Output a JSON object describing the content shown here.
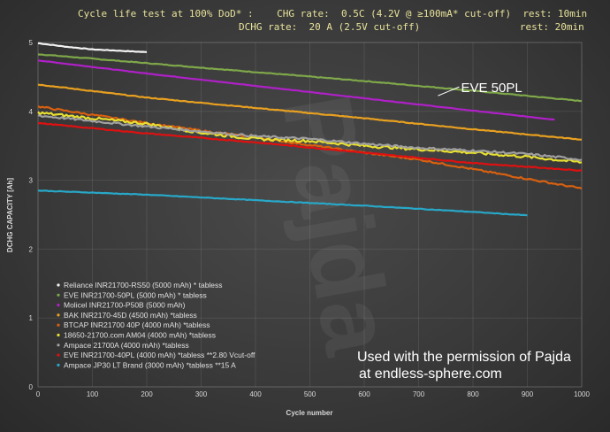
{
  "header": {
    "line1": "Cycle life test at 100% DoD* :    CHG rate:  0.5C (4.2V @ ≥100mA* cut-off)  rest: 10min",
    "line2": "DCHG rate:  20 A (2.5V cut-off)                 rest: 20min"
  },
  "permission": {
    "line1": "Used with the permission of Pajda",
    "line2": "at endless-sphere.com"
  },
  "watermark": "Pajda",
  "chart_data": {
    "type": "line",
    "xlabel": "Cycle number",
    "ylabel": "DCHG CAPACITY [Ah]",
    "xlim": [
      0,
      1000
    ],
    "ylim": [
      0,
      5
    ],
    "xticks": [
      0,
      100,
      200,
      300,
      400,
      500,
      600,
      700,
      800,
      900,
      1000
    ],
    "yticks": [
      0,
      1,
      2,
      3,
      4,
      5
    ],
    "grid": true,
    "legend_position": "bottom-left",
    "annotation": {
      "text": "EVE 50PL",
      "x": 778,
      "y": 4.24
    },
    "series": [
      {
        "name": "Reliance INR21700-RS50 (5000 mAh) * tabless",
        "color": "#f2f2f2",
        "noise": 0.004,
        "x": [
          0,
          50,
          100,
          150,
          200
        ],
        "y": [
          4.99,
          4.94,
          4.9,
          4.88,
          4.86
        ]
      },
      {
        "name": "EVE INR21700-50PL (5000 mAh) * tabless",
        "color": "#7fa84a",
        "noise": 0.005,
        "x": [
          0,
          200,
          400,
          600,
          800,
          1000
        ],
        "y": [
          4.83,
          4.7,
          4.57,
          4.44,
          4.3,
          4.15
        ]
      },
      {
        "name": "Molicel INR21700-P50B (5000 mAh)",
        "color": "#b020c8",
        "noise": 0.003,
        "x": [
          0,
          200,
          400,
          600,
          800,
          950
        ],
        "y": [
          4.74,
          4.55,
          4.37,
          4.19,
          4.01,
          3.88
        ]
      },
      {
        "name": "BAK INR2170-45D (4500 mAh) *tabless",
        "color": "#e8a020",
        "noise": 0.005,
        "x": [
          0,
          200,
          400,
          600,
          800,
          1000
        ],
        "y": [
          4.39,
          4.2,
          4.05,
          3.9,
          3.74,
          3.59
        ]
      },
      {
        "name": "BTCAP INR21700 40P (4000 mAh) *tabless",
        "color": "#d86010",
        "noise": 0.012,
        "x": [
          0,
          100,
          200,
          300,
          400,
          500,
          600,
          700,
          800,
          900,
          1000
        ],
        "y": [
          4.07,
          3.95,
          3.83,
          3.72,
          3.62,
          3.51,
          3.4,
          3.3,
          3.16,
          3.02,
          2.88
        ]
      },
      {
        "name": "18650-21700.com AM04 (4000 mAh) *tabless",
        "color": "#e8e030",
        "noise": 0.02,
        "x": [
          0,
          200,
          300,
          400,
          500,
          600,
          700,
          800,
          900,
          1000
        ],
        "y": [
          3.98,
          3.82,
          3.69,
          3.6,
          3.57,
          3.5,
          3.45,
          3.4,
          3.34,
          3.26
        ]
      },
      {
        "name": "Ampace 21700A (4000 mAh) *tabless",
        "color": "#a0a0a0",
        "noise": 0.015,
        "x": [
          0,
          200,
          400,
          500,
          600,
          700,
          800,
          900,
          1000
        ],
        "y": [
          3.94,
          3.78,
          3.64,
          3.6,
          3.53,
          3.47,
          3.43,
          3.38,
          3.3
        ]
      },
      {
        "name": "EVE INR21700-40PL (4000 mAh) *tabless **2.80 Vcut-off",
        "color": "#e01010",
        "noise": 0.006,
        "x": [
          0,
          200,
          400,
          600,
          800,
          1000
        ],
        "y": [
          3.83,
          3.68,
          3.55,
          3.4,
          3.25,
          3.14
        ]
      },
      {
        "name": "Ampace JP30 LT Brand (3000 mAh) *tabless **15 A",
        "color": "#28a8c8",
        "noise": 0.004,
        "x": [
          0,
          200,
          400,
          600,
          800,
          900
        ],
        "y": [
          2.85,
          2.79,
          2.71,
          2.63,
          2.54,
          2.49
        ]
      }
    ]
  }
}
